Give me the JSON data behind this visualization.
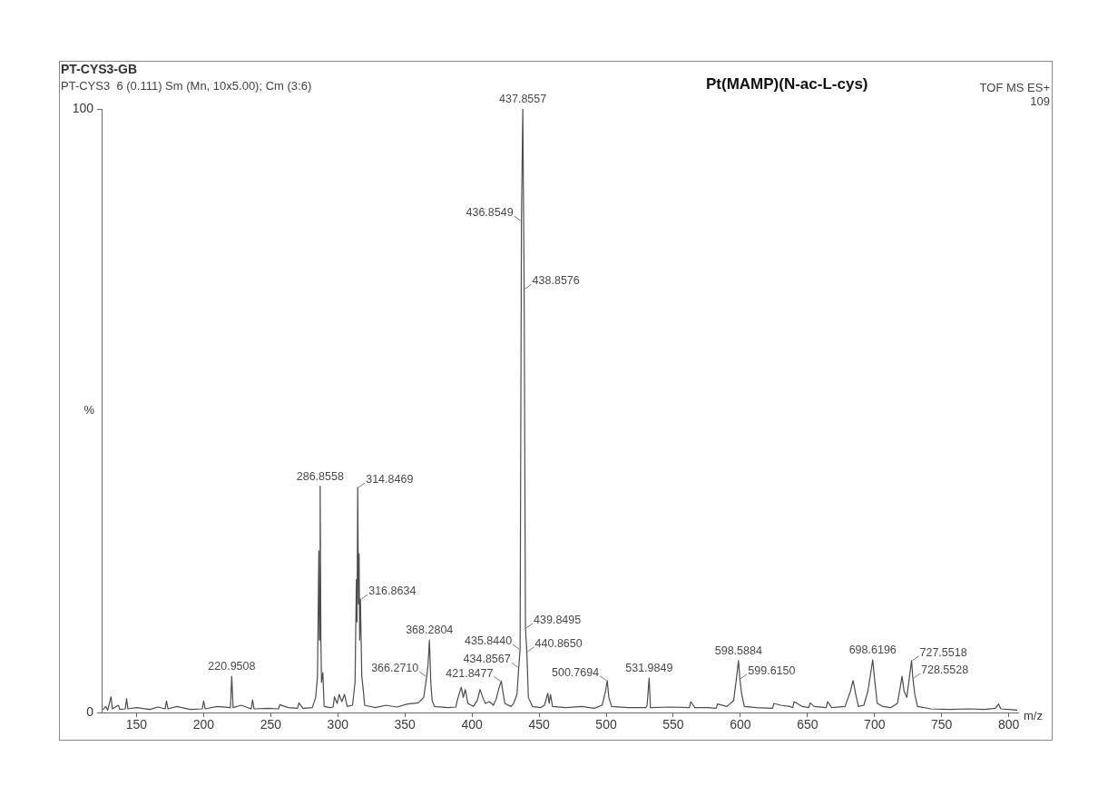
{
  "chart_data": {
    "type": "line",
    "title": "PT-CYS3-GB",
    "subtitle": "PT-CYS3  6 (0.111) Sm (Mn, 10x5.00); Cm (3:6)",
    "xlabel": "m/z",
    "ylabel": "%",
    "color": "#4d4d4d",
    "marker": "none",
    "x": [
      125,
      127,
      128.5,
      131,
      132,
      136.5,
      137.5,
      141.6,
      142.6,
      143.6,
      150,
      160,
      166,
      171.3,
      172.3,
      173.5,
      180,
      190,
      199,
      200,
      201.2,
      210,
      220,
      220.9508,
      222,
      228,
      235.5,
      236.5,
      237.6,
      248,
      255.8,
      256.8,
      263,
      270,
      271,
      274,
      281,
      283.5,
      284.86,
      285.86,
      286.3,
      286.8558,
      287.4,
      287.86,
      288.86,
      289.8,
      294,
      296.5,
      297.5,
      299.5,
      301,
      303,
      305,
      307,
      311,
      312.85,
      313.85,
      314.3,
      314.8469,
      315.4,
      315.85,
      316.3,
      316.8634,
      317.86,
      318.86,
      320,
      328,
      336,
      344,
      352,
      360,
      364,
      366.271,
      367.3,
      368.2804,
      369.3,
      370.3,
      372,
      382,
      388,
      389,
      392,
      393.5,
      395,
      397,
      401,
      404,
      406,
      408,
      410,
      413,
      416,
      418,
      420,
      421.8477,
      423,
      424.5,
      429,
      431,
      433.5,
      434.8567,
      435.844,
      436.8549,
      437.8557,
      438.8576,
      439.8495,
      440.865,
      442,
      445,
      451,
      454,
      456.5,
      457.5,
      458.5,
      460,
      470,
      482,
      491,
      497,
      499.5,
      500.7694,
      502,
      504,
      516,
      529.5,
      530.5,
      531.9849,
      533,
      548,
      562,
      563,
      566,
      576,
      582,
      583,
      590,
      595,
      597,
      598.5884,
      599.615,
      601,
      603,
      612,
      624,
      625,
      630,
      637,
      639,
      640,
      646,
      651,
      652,
      655,
      664,
      665,
      668,
      678,
      682,
      684,
      686,
      688,
      692,
      695,
      698.6196,
      700.5,
      702,
      706,
      712,
      717,
      719,
      720.5,
      722,
      724,
      725.5,
      727.5518,
      728.5528,
      730,
      732,
      742,
      756,
      770,
      782,
      790,
      792.5,
      794,
      800,
      806
    ],
    "values": [
      0.5,
      1.0,
      0.4,
      2.6,
      0.6,
      1.2,
      0.5,
      0.6,
      2.3,
      0.6,
      0.8,
      0.5,
      0.9,
      0.6,
      1.9,
      0.6,
      1.0,
      0.5,
      0.6,
      1.9,
      0.6,
      1.0,
      0.8,
      6.0,
      0.8,
      1.2,
      0.6,
      2.1,
      0.6,
      0.7,
      0.6,
      1.3,
      0.8,
      0.7,
      1.6,
      0.7,
      0.8,
      2.5,
      6.0,
      26.8,
      12,
      37.5,
      12,
      5.0,
      6.6,
      1.0,
      0.8,
      0.9,
      2.6,
      1.5,
      3.0,
      1.8,
      3.0,
      1.0,
      1.2,
      5.0,
      22,
      15,
      37.3,
      18,
      26.3,
      12,
      18.8,
      6.0,
      4.0,
      1.2,
      0.8,
      1.2,
      0.9,
      1.4,
      1.6,
      2.5,
      6.0,
      8.0,
      12.0,
      5.0,
      2.0,
      1.0,
      0.8,
      0.9,
      2.0,
      4.2,
      2.5,
      3.8,
      1.5,
      1.0,
      2.0,
      3.8,
      2.5,
      1.5,
      1.8,
      1.2,
      2.2,
      4.0,
      5.2,
      3.5,
      1.5,
      1.0,
      1.5,
      3.0,
      7.5,
      10.5,
      81.5,
      100,
      70.2,
      14.0,
      10.1,
      2.5,
      1.0,
      0.8,
      1.2,
      3.2,
      1.5,
      3.0,
      1.0,
      0.8,
      1.0,
      0.7,
      1.2,
      3.5,
      5.3,
      2.5,
      1.0,
      0.8,
      0.8,
      1.2,
      5.7,
      0.8,
      0.9,
      0.8,
      1.8,
      0.8,
      0.8,
      0.7,
      1.4,
      1.0,
      2.0,
      5.5,
      8.6,
      5.6,
      3.0,
      1.0,
      0.8,
      0.7,
      1.5,
      1.2,
      1.0,
      0.8,
      1.8,
      1.0,
      0.8,
      1.6,
      1.0,
      0.8,
      1.8,
      0.8,
      1.0,
      3.5,
      5.3,
      3.0,
      1.0,
      1.2,
      3.5,
      8.7,
      4.5,
      1.5,
      1.0,
      0.8,
      1.5,
      4.0,
      6.0,
      3.5,
      2.5,
      5.0,
      8.6,
      5.7,
      3.0,
      1.0,
      0.6,
      0.5,
      0.6,
      0.5,
      0.7,
      1.4,
      0.6,
      0.5,
      0.4
    ],
    "xlim": [
      124,
      807
    ],
    "xticks": [
      150,
      200,
      250,
      300,
      350,
      400,
      450,
      500,
      550,
      600,
      650,
      700,
      750,
      800
    ],
    "ylim": [
      0,
      100
    ],
    "yticks": [
      0,
      100
    ],
    "annotations": [
      "Pt(MAMP)(N-ac-L-cys)",
      "TOF MS ES+",
      "109",
      {
        "text": "220.9508",
        "x": 220.9508,
        "y": 6.0
      },
      {
        "text": "286.8558",
        "x": 286.8558,
        "y": 37.5
      },
      {
        "text": "314.8469",
        "x": 314.8469,
        "y": 37.3
      },
      {
        "text": "316.8634",
        "x": 316.8634,
        "y": 18.8
      },
      {
        "text": "366.2710",
        "x": 366.271,
        "y": 6.0
      },
      {
        "text": "368.2804",
        "x": 368.2804,
        "y": 12.0
      },
      {
        "text": "421.8477",
        "x": 421.8477,
        "y": 5.2
      },
      {
        "text": "434.8567",
        "x": 434.8567,
        "y": 7.5
      },
      {
        "text": "435.8440",
        "x": 435.844,
        "y": 10.5
      },
      {
        "text": "436.8549",
        "x": 436.8549,
        "y": 81.5
      },
      {
        "text": "437.8557",
        "x": 437.8557,
        "y": 100
      },
      {
        "text": "438.8576",
        "x": 438.8576,
        "y": 70.2
      },
      {
        "text": "439.8495",
        "x": 439.8495,
        "y": 14.0
      },
      {
        "text": "440.8650",
        "x": 440.865,
        "y": 10.1
      },
      {
        "text": "500.7694",
        "x": 500.7694,
        "y": 5.3
      },
      {
        "text": "531.9849",
        "x": 531.9849,
        "y": 5.7
      },
      {
        "text": "598.5884",
        "x": 598.5884,
        "y": 8.6
      },
      {
        "text": "599.6150",
        "x": 599.615,
        "y": 5.6
      },
      {
        "text": "698.6196",
        "x": 698.6196,
        "y": 8.7
      },
      {
        "text": "727.5518",
        "x": 727.5518,
        "y": 8.6
      },
      {
        "text": "728.5528",
        "x": 728.5528,
        "y": 5.7
      }
    ]
  }
}
